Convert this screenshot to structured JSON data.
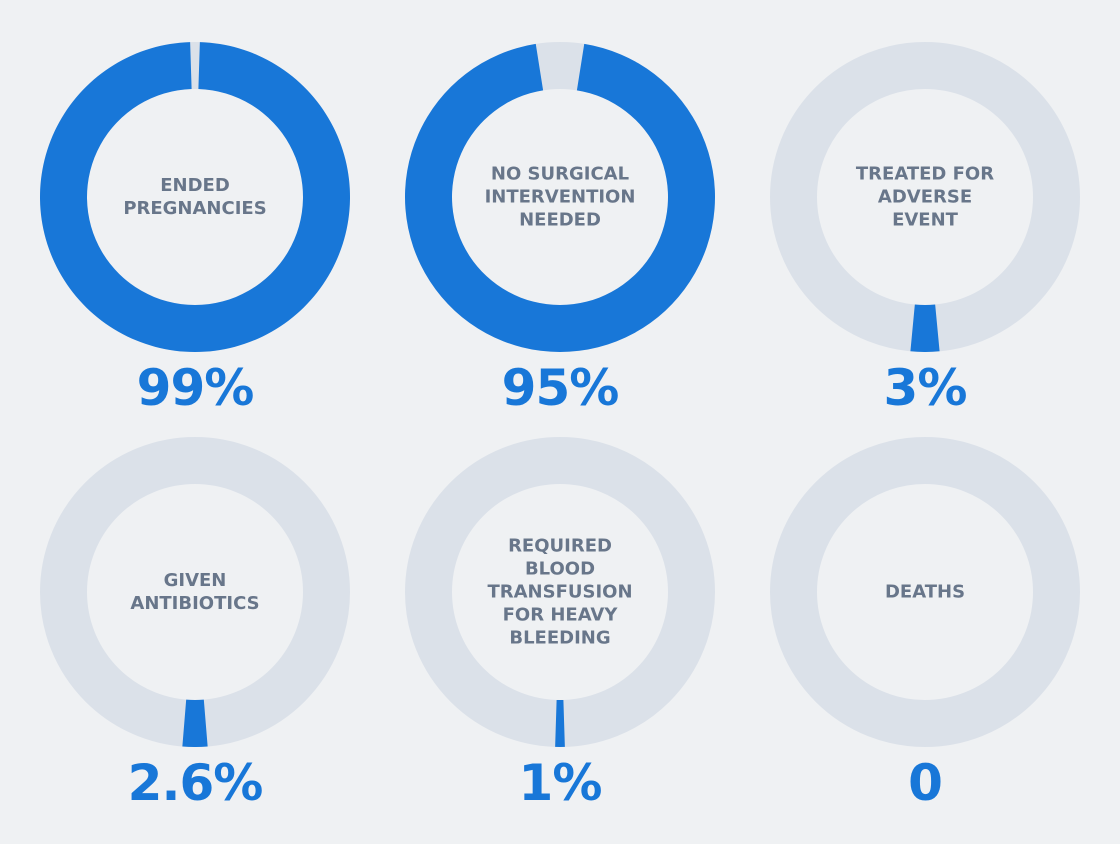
{
  "colors": {
    "background": "#eff1f3",
    "track": "#dbe1e9",
    "fill": "#1877d8",
    "label": "#68768a",
    "value": "#1877d8"
  },
  "chart_data": [
    {
      "type": "donut",
      "label": "ENDED PREGNANCIES",
      "value_text": "99%",
      "percent": 99
    },
    {
      "type": "donut",
      "label": "NO SURGICAL INTERVENTION NEEDED",
      "value_text": "95%",
      "percent": 95
    },
    {
      "type": "donut",
      "label": "TREATED FOR ADVERSE EVENT",
      "value_text": "3%",
      "percent": 3
    },
    {
      "type": "donut",
      "label": "GIVEN ANTIBIOTICS",
      "value_text": "2.6%",
      "percent": 2.6
    },
    {
      "type": "donut",
      "label": "REQUIRED BLOOD TRANSFUSION FOR HEAVY BLEEDING",
      "value_text": "1%",
      "percent": 1
    },
    {
      "type": "donut",
      "label": "DEATHS",
      "value_text": "0",
      "percent": 0
    }
  ]
}
